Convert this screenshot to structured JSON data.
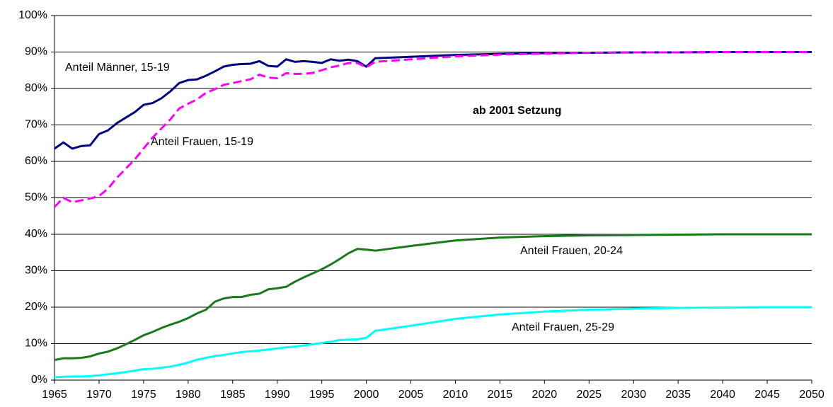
{
  "chart_data": {
    "type": "line",
    "annotation": "ab 2001 Setzung",
    "x": [
      1965,
      1966,
      1967,
      1968,
      1969,
      1970,
      1971,
      1972,
      1973,
      1974,
      1975,
      1976,
      1977,
      1978,
      1979,
      1980,
      1981,
      1982,
      1983,
      1984,
      1985,
      1986,
      1987,
      1988,
      1989,
      1990,
      1991,
      1992,
      1993,
      1994,
      1995,
      1996,
      1997,
      1998,
      1999,
      2000,
      2001,
      2005,
      2010,
      2015,
      2020,
      2025,
      2030,
      2035,
      2040,
      2045,
      2050
    ],
    "series": [
      {
        "name": "Anteil Männer, 15-19",
        "color": "#000080",
        "dashed": false,
        "values": [
          63.5,
          65.2,
          63.5,
          64.2,
          64.4,
          67.5,
          68.5,
          70.5,
          72,
          73.5,
          75.5,
          76,
          77.3,
          79.2,
          81.5,
          82.3,
          82.5,
          83.5,
          84.7,
          86,
          86.5,
          86.7,
          86.8,
          87.5,
          86.2,
          86,
          88,
          87.3,
          87.5,
          87.3,
          87,
          88,
          87.6,
          87.9,
          87.5,
          86,
          88.3,
          88.7,
          89.2,
          89.5,
          89.7,
          89.8,
          89.9,
          89.9,
          90,
          90,
          90
        ]
      },
      {
        "name": "Anteil Frauen, 15-19",
        "color": "#ff00ff",
        "dashed": true,
        "values": [
          47.5,
          50,
          48.8,
          49.3,
          49.8,
          50.5,
          52.5,
          55.5,
          58,
          60.5,
          63.5,
          66.5,
          69,
          71.5,
          74.5,
          75.8,
          77,
          78.8,
          79.8,
          81,
          81.5,
          82,
          82.5,
          83.8,
          83,
          82.8,
          84.2,
          84,
          84,
          84.3,
          85,
          85.8,
          86.3,
          87,
          87,
          85.8,
          87.3,
          88,
          88.8,
          89.3,
          89.6,
          89.8,
          89.9,
          89.9,
          90,
          90,
          90
        ]
      },
      {
        "name": "Anteil Frauen, 20-24",
        "color": "#1a7a1a",
        "dashed": false,
        "values": [
          5.5,
          6,
          6,
          6.1,
          6.5,
          7.3,
          7.8,
          8.7,
          9.8,
          11,
          12.3,
          13.2,
          14.3,
          15.2,
          16,
          17,
          18.3,
          19.3,
          21.5,
          22.4,
          22.8,
          22.8,
          23.4,
          23.7,
          24.9,
          25.2,
          25.6,
          27,
          28.2,
          29.3,
          30.4,
          31.7,
          33.2,
          34.8,
          36,
          35.8,
          35.5,
          36.8,
          38.3,
          39.1,
          39.5,
          39.7,
          39.8,
          39.9,
          40,
          40,
          40
        ]
      },
      {
        "name": "Anteil Frauen, 25-29",
        "color": "#00ffff",
        "dashed": false,
        "values": [
          0.8,
          0.9,
          1,
          1,
          1.1,
          1.3,
          1.6,
          1.9,
          2.2,
          2.6,
          3,
          3.1,
          3.4,
          3.7,
          4.2,
          4.8,
          5.6,
          6.1,
          6.6,
          6.9,
          7.3,
          7.7,
          7.9,
          8.1,
          8.4,
          8.7,
          9,
          9.2,
          9.5,
          9.8,
          10.2,
          10.5,
          11,
          11.1,
          11.2,
          11.6,
          13.5,
          14.9,
          16.8,
          18,
          18.8,
          19.3,
          19.6,
          19.8,
          19.9,
          20,
          20
        ]
      }
    ],
    "xlim": [
      1965,
      2050
    ],
    "xticks": [
      1965,
      1970,
      1975,
      1980,
      1985,
      1990,
      1995,
      2000,
      2005,
      2010,
      2015,
      2020,
      2025,
      2030,
      2035,
      2040,
      2045,
      2050
    ],
    "ylim": [
      0,
      100
    ],
    "yticks": [
      {
        "value": 0,
        "label": "0%"
      },
      {
        "value": 10,
        "label": "10%"
      },
      {
        "value": 20,
        "label": "20%"
      },
      {
        "value": 30,
        "label": "30%"
      },
      {
        "value": 40,
        "label": "40%"
      },
      {
        "value": 50,
        "label": "50%"
      },
      {
        "value": 60,
        "label": "60%"
      },
      {
        "value": 70,
        "label": "70%"
      },
      {
        "value": 80,
        "label": "80%"
      },
      {
        "value": 90,
        "label": "90%"
      },
      {
        "value": 100,
        "label": "100%"
      }
    ],
    "grid": true
  }
}
